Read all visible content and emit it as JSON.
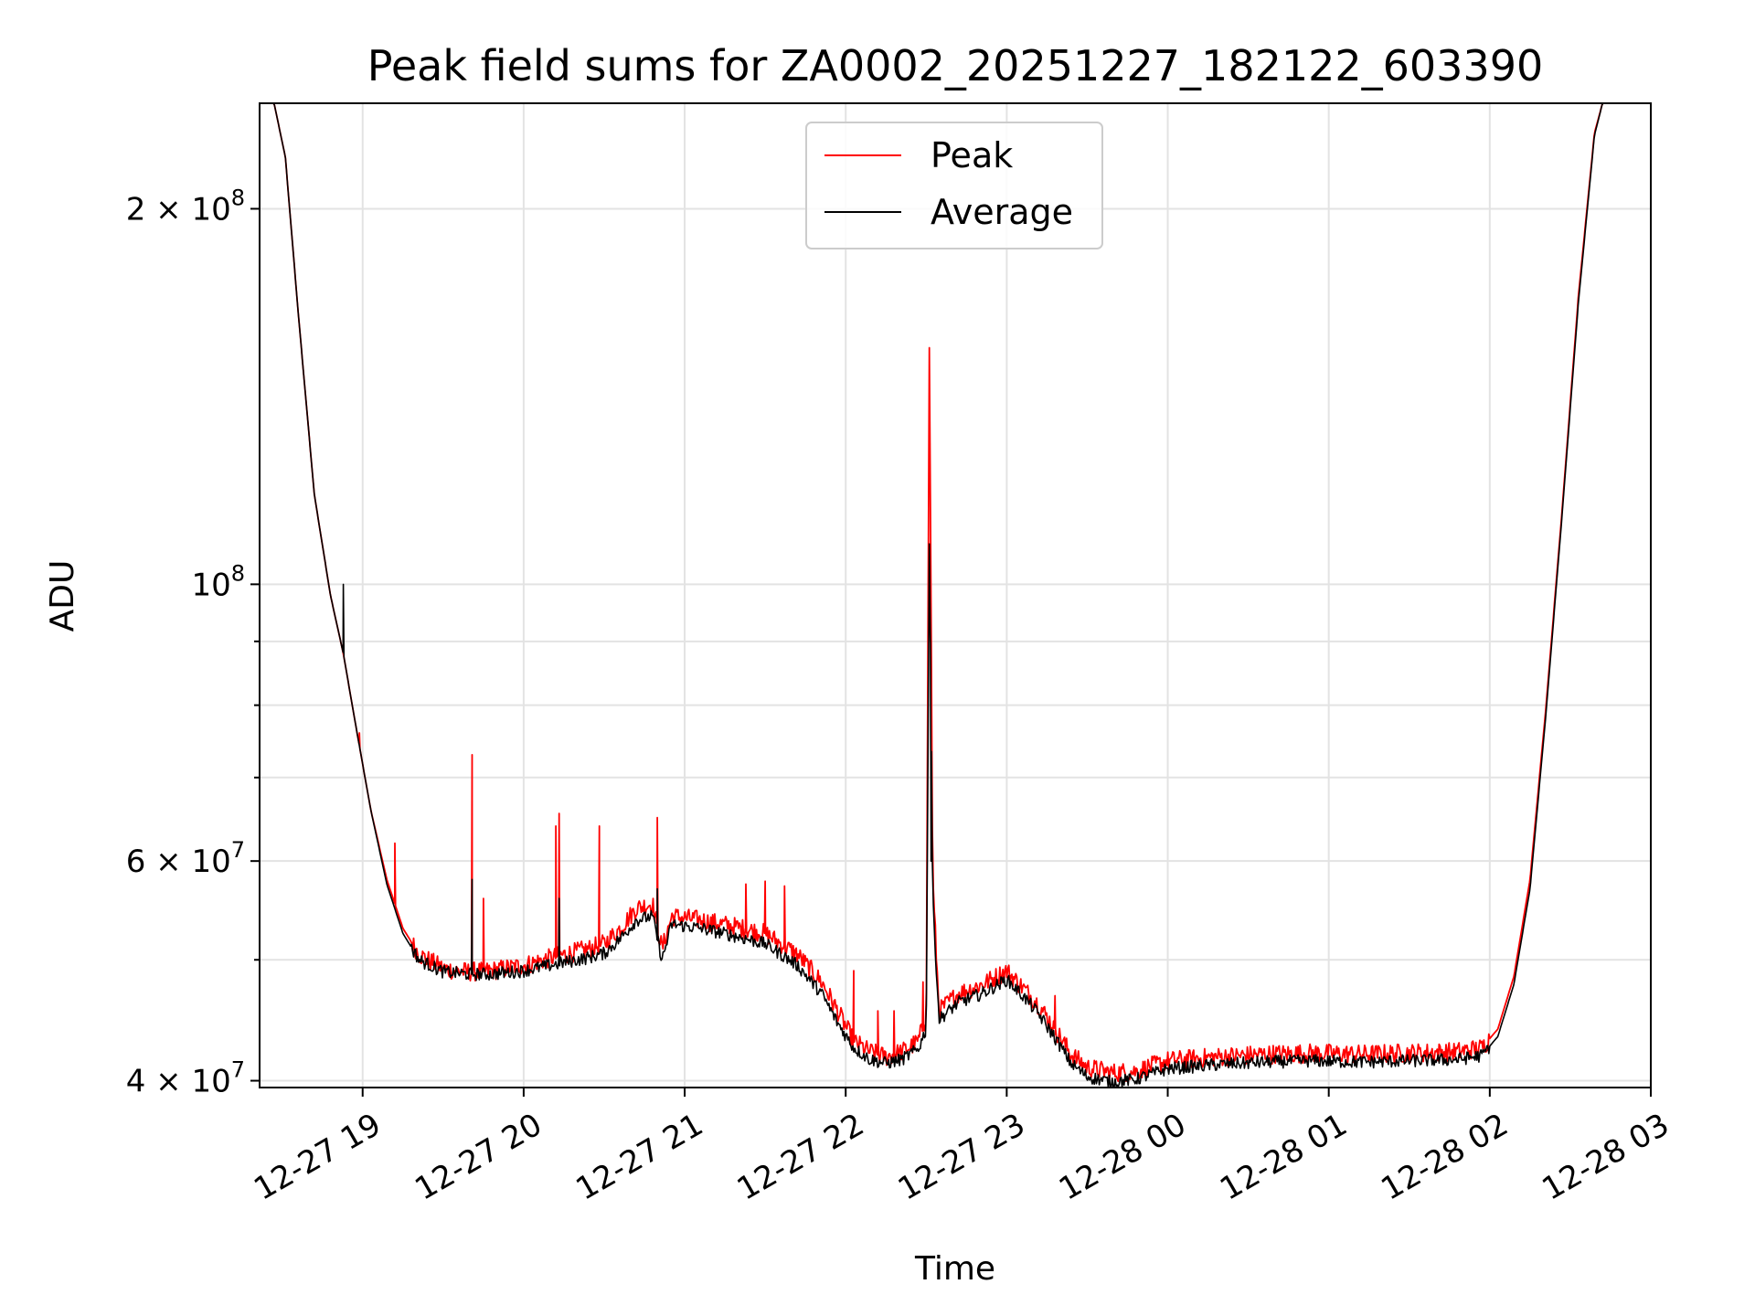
{
  "chart_data": {
    "type": "line",
    "title": "Peak field sums for ZA0002_20251227_182122_603390",
    "xlabel": "Time",
    "ylabel": "ADU",
    "yscale": "log",
    "ylim": [
      39500000,
      243000000
    ],
    "xlim_hours_since_12_27_18_00": [
      0.36,
      9.0
    ],
    "grid": true,
    "legend_position": "top-center",
    "x_ticks": [
      {
        "label": "12-27 19",
        "t": 1
      },
      {
        "label": "12-27 20",
        "t": 2
      },
      {
        "label": "12-27 21",
        "t": 3
      },
      {
        "label": "12-27 22",
        "t": 4
      },
      {
        "label": "12-27 23",
        "t": 5
      },
      {
        "label": "12-28 00",
        "t": 6
      },
      {
        "label": "12-28 01",
        "t": 7
      },
      {
        "label": "12-28 02",
        "t": 8
      },
      {
        "label": "12-28 03",
        "t": 9
      }
    ],
    "y_major_ticks": [
      {
        "base": "4",
        "exp": "7",
        "value": 40000000
      },
      {
        "base": "6",
        "exp": "7",
        "value": 60000000
      },
      {
        "base": "",
        "exp": "8",
        "value": 100000000
      },
      {
        "base": "2",
        "exp": "8",
        "value": 200000000
      }
    ],
    "y_minor_ticks": [
      50000000,
      70000000,
      80000000,
      90000000
    ],
    "series": [
      {
        "name": "Peak",
        "color": "#ff0000",
        "points": [
          [
            0.36,
            243000000
          ],
          [
            0.45,
            243000000
          ],
          [
            0.52,
            220000000
          ],
          [
            0.6,
            165000000
          ],
          [
            0.7,
            118000000
          ],
          [
            0.8,
            98000000
          ],
          [
            0.88,
            88000000
          ],
          [
            0.95,
            78000000
          ],
          [
            1.05,
            66000000
          ],
          [
            1.15,
            58000000
          ],
          [
            1.25,
            53000000
          ],
          [
            1.35,
            50500000
          ],
          [
            1.5,
            49200000
          ],
          [
            1.65,
            48900000
          ],
          [
            1.8,
            49000000
          ],
          [
            2.0,
            49500000
          ],
          [
            2.2,
            50300000
          ],
          [
            2.4,
            51000000
          ],
          [
            2.5,
            51500000
          ],
          [
            2.6,
            53000000
          ],
          [
            2.7,
            55000000
          ],
          [
            2.8,
            55500000
          ],
          [
            2.86,
            51000000
          ],
          [
            2.92,
            54200000
          ],
          [
            3.1,
            53800000
          ],
          [
            3.3,
            53200000
          ],
          [
            3.5,
            52500000
          ],
          [
            3.7,
            50500000
          ],
          [
            3.85,
            48000000
          ],
          [
            3.95,
            45500000
          ],
          [
            4.05,
            43000000
          ],
          [
            4.15,
            42200000
          ],
          [
            4.25,
            41800000
          ],
          [
            4.35,
            42200000
          ],
          [
            4.45,
            43000000
          ],
          [
            4.5,
            45000000
          ],
          [
            4.52,
            158000000
          ],
          [
            4.54,
            58000000
          ],
          [
            4.58,
            45500000
          ],
          [
            4.7,
            47000000
          ],
          [
            4.85,
            47800000
          ],
          [
            5.0,
            49000000
          ],
          [
            5.1,
            47500000
          ],
          [
            5.2,
            46000000
          ],
          [
            5.3,
            44000000
          ],
          [
            5.4,
            42000000
          ],
          [
            5.5,
            41000000
          ],
          [
            5.65,
            40600000
          ],
          [
            5.8,
            40700000
          ],
          [
            6.0,
            41500000
          ],
          [
            6.3,
            41800000
          ],
          [
            6.6,
            42000000
          ],
          [
            6.9,
            42100000
          ],
          [
            7.2,
            42000000
          ],
          [
            7.5,
            42100000
          ],
          [
            7.8,
            42200000
          ],
          [
            7.95,
            42500000
          ],
          [
            8.05,
            44000000
          ],
          [
            8.15,
            48500000
          ],
          [
            8.25,
            58000000
          ],
          [
            8.35,
            80000000
          ],
          [
            8.45,
            115000000
          ],
          [
            8.55,
            170000000
          ],
          [
            8.65,
            230000000
          ],
          [
            8.7,
            243000000
          ],
          [
            9.0,
            243000000
          ]
        ],
        "spikes": [
          [
            0.98,
            76000000
          ],
          [
            1.2,
            62000000
          ],
          [
            1.68,
            73000000
          ],
          [
            1.75,
            56000000
          ],
          [
            2.2,
            64000000
          ],
          [
            2.22,
            65500000
          ],
          [
            2.47,
            64000000
          ],
          [
            2.83,
            65000000
          ],
          [
            3.38,
            57500000
          ],
          [
            3.5,
            57800000
          ],
          [
            3.62,
            57300000
          ],
          [
            4.05,
            49000000
          ],
          [
            4.2,
            45500000
          ],
          [
            4.3,
            45500000
          ],
          [
            4.48,
            48000000
          ],
          [
            5.3,
            46800000
          ]
        ]
      },
      {
        "name": "Average",
        "color": "#000000",
        "points": [
          [
            0.36,
            243000000
          ],
          [
            0.45,
            243000000
          ],
          [
            0.52,
            220000000
          ],
          [
            0.6,
            165000000
          ],
          [
            0.7,
            118000000
          ],
          [
            0.8,
            98000000
          ],
          [
            0.88,
            88000000
          ],
          [
            0.95,
            78000000
          ],
          [
            1.05,
            66000000
          ],
          [
            1.15,
            57500000
          ],
          [
            1.25,
            52500000
          ],
          [
            1.35,
            50000000
          ],
          [
            1.5,
            48900000
          ],
          [
            1.65,
            48700000
          ],
          [
            1.8,
            48700000
          ],
          [
            2.0,
            49000000
          ],
          [
            2.2,
            49600000
          ],
          [
            2.4,
            50200000
          ],
          [
            2.5,
            50600000
          ],
          [
            2.6,
            52000000
          ],
          [
            2.7,
            53800000
          ],
          [
            2.8,
            54200000
          ],
          [
            2.86,
            50000000
          ],
          [
            2.92,
            53400000
          ],
          [
            3.1,
            53000000
          ],
          [
            3.3,
            52300000
          ],
          [
            3.5,
            51500000
          ],
          [
            3.7,
            49500000
          ],
          [
            3.85,
            47000000
          ],
          [
            3.95,
            44500000
          ],
          [
            4.05,
            42500000
          ],
          [
            4.15,
            41600000
          ],
          [
            4.25,
            41300000
          ],
          [
            4.35,
            41600000
          ],
          [
            4.45,
            42400000
          ],
          [
            4.5,
            44000000
          ],
          [
            4.52,
            110000000
          ],
          [
            4.54,
            56000000
          ],
          [
            4.58,
            44800000
          ],
          [
            4.7,
            46200000
          ],
          [
            4.85,
            47000000
          ],
          [
            5.0,
            48200000
          ],
          [
            5.1,
            46800000
          ],
          [
            5.2,
            45200000
          ],
          [
            5.3,
            43300000
          ],
          [
            5.4,
            41300000
          ],
          [
            5.5,
            40300000
          ],
          [
            5.65,
            39900000
          ],
          [
            5.8,
            40100000
          ],
          [
            6.0,
            40900000
          ],
          [
            6.3,
            41200000
          ],
          [
            6.6,
            41400000
          ],
          [
            6.9,
            41500000
          ],
          [
            7.2,
            41400000
          ],
          [
            7.5,
            41500000
          ],
          [
            7.8,
            41600000
          ],
          [
            7.95,
            41900000
          ],
          [
            8.05,
            43400000
          ],
          [
            8.15,
            47800000
          ],
          [
            8.25,
            57000000
          ],
          [
            8.35,
            79000000
          ],
          [
            8.45,
            114000000
          ],
          [
            8.55,
            168000000
          ],
          [
            8.65,
            229000000
          ],
          [
            8.7,
            243000000
          ],
          [
            9.0,
            243000000
          ]
        ],
        "spikes": [
          [
            0.88,
            100000000
          ],
          [
            1.68,
            58000000
          ],
          [
            2.22,
            56000000
          ],
          [
            2.83,
            57000000
          ],
          [
            4.53,
            60000000
          ]
        ]
      }
    ]
  }
}
